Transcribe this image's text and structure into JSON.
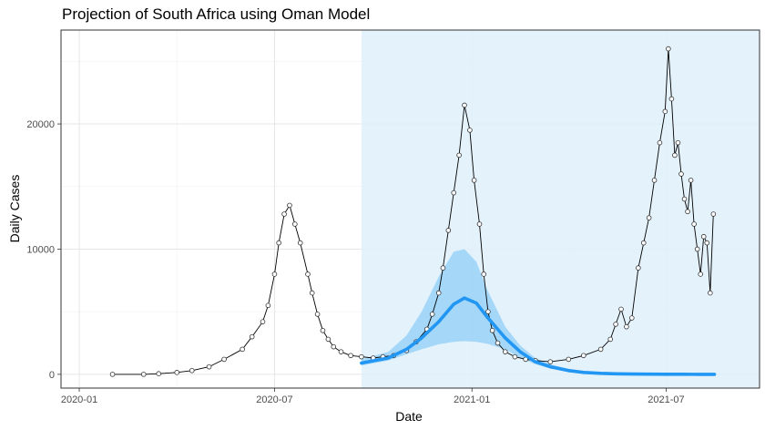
{
  "chart_data": {
    "type": "line",
    "title": "Projection of South Africa using Oman Model",
    "xlabel": "Date",
    "ylabel": "Daily Cases",
    "x_ticks": [
      "2020-01",
      "2020-07",
      "2021-01",
      "2021-07"
    ],
    "y_ticks": [
      0,
      10000,
      20000
    ],
    "xlim": [
      "2019-12-15",
      "2021-09-26"
    ],
    "ylim": [
      -1100,
      27500
    ],
    "grid": true,
    "projection_region": {
      "start": "2020-09-20",
      "end": "2021-09-26",
      "color": "#dff0fc"
    },
    "series": [
      {
        "kind": "observed_points_line",
        "line_color": "#000000",
        "point_fill": "#ffffff",
        "point_stroke": "#333333",
        "x": [
          "2020-02-01",
          "2020-03-01",
          "2020-03-15",
          "2020-04-01",
          "2020-04-15",
          "2020-05-01",
          "2020-05-15",
          "2020-06-01",
          "2020-06-10",
          "2020-06-20",
          "2020-06-25",
          "2020-07-01",
          "2020-07-05",
          "2020-07-10",
          "2020-07-15",
          "2020-07-20",
          "2020-07-25",
          "2020-08-01",
          "2020-08-05",
          "2020-08-10",
          "2020-08-15",
          "2020-08-20",
          "2020-08-25",
          "2020-09-01",
          "2020-09-10",
          "2020-09-20",
          "2020-10-01",
          "2020-10-10",
          "2020-10-20",
          "2020-11-01",
          "2020-11-10",
          "2020-11-20",
          "2020-11-25",
          "2020-12-01",
          "2020-12-05",
          "2020-12-10",
          "2020-12-15",
          "2020-12-20",
          "2020-12-25",
          "2020-12-30",
          "2021-01-03",
          "2021-01-08",
          "2021-01-12",
          "2021-01-16",
          "2021-01-20",
          "2021-01-25",
          "2021-02-01",
          "2021-02-10",
          "2021-02-20",
          "2021-03-01",
          "2021-03-15",
          "2021-04-01",
          "2021-04-15",
          "2021-05-01",
          "2021-05-10",
          "2021-05-15",
          "2021-05-20",
          "2021-05-25",
          "2021-05-30",
          "2021-06-05",
          "2021-06-10",
          "2021-06-15",
          "2021-06-20",
          "2021-06-25",
          "2021-06-30",
          "2021-07-03",
          "2021-07-06",
          "2021-07-09",
          "2021-07-12",
          "2021-07-15",
          "2021-07-18",
          "2021-07-21",
          "2021-07-24",
          "2021-07-27",
          "2021-07-30",
          "2021-08-02",
          "2021-08-05",
          "2021-08-08",
          "2021-08-11",
          "2021-08-14"
        ],
        "values": [
          0,
          0,
          50,
          150,
          300,
          600,
          1200,
          2000,
          3000,
          4200,
          5500,
          8000,
          10500,
          12800,
          13500,
          12000,
          10500,
          8000,
          6500,
          4800,
          3500,
          2800,
          2200,
          1800,
          1500,
          1400,
          1300,
          1400,
          1500,
          1900,
          2600,
          3600,
          4800,
          6500,
          8500,
          11500,
          14500,
          17500,
          21500,
          19500,
          15500,
          12000,
          8000,
          5000,
          3500,
          2500,
          1800,
          1400,
          1200,
          1100,
          1000,
          1200,
          1500,
          2000,
          2800,
          4000,
          5200,
          3800,
          4500,
          8500,
          10500,
          12500,
          15500,
          18500,
          21000,
          26000,
          22000,
          17500,
          18500,
          16000,
          14000,
          13000,
          15500,
          12000,
          10000,
          8000,
          11000,
          10500,
          6500,
          12800
        ]
      },
      {
        "kind": "projection_mean",
        "color": "#2196f3",
        "x": [
          "2020-09-20",
          "2020-10-15",
          "2020-11-01",
          "2020-11-15",
          "2020-12-01",
          "2020-12-15",
          "2020-12-25",
          "2021-01-05",
          "2021-01-15",
          "2021-02-01",
          "2021-02-15",
          "2021-03-01",
          "2021-03-15",
          "2021-04-01",
          "2021-04-15",
          "2021-05-01",
          "2021-05-15",
          "2021-06-01",
          "2021-06-15",
          "2021-07-01",
          "2021-07-15",
          "2021-08-01",
          "2021-08-15"
        ],
        "values": [
          900,
          1300,
          2000,
          2900,
          4200,
          5600,
          6100,
          5700,
          4600,
          2900,
          1800,
          1000,
          600,
          300,
          150,
          80,
          40,
          20,
          10,
          5,
          3,
          2,
          1
        ],
        "lower": [
          700,
          1100,
          1600,
          2000,
          2400,
          2600,
          2650,
          2600,
          2450,
          2000,
          1300,
          800,
          450,
          250,
          120,
          60,
          30,
          15,
          8,
          4,
          2,
          1,
          0
        ],
        "upper": [
          1200,
          1800,
          3100,
          5000,
          7800,
          9800,
          10000,
          9000,
          6800,
          3800,
          2300,
          1300,
          800,
          450,
          250,
          130,
          70,
          35,
          18,
          9,
          5,
          3,
          2
        ]
      }
    ]
  }
}
